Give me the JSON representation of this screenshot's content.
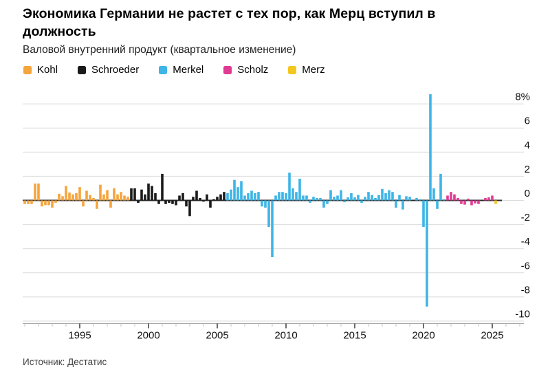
{
  "page": {
    "title": "Экономика Германии не растет с тех пор, как Мерц вступил в должность",
    "subtitle": "Валовой внутренний продукт (квартальное изменение)",
    "source": "Источник: Дестатис"
  },
  "chart_data": {
    "type": "bar",
    "title": "Экономика Германии не растет с тех пор, как Мерц вступил в должность",
    "subtitle": "Валовой внутренний продукт (квартальное изменение)",
    "source": "Источник: Дестатис",
    "unit": "%",
    "frequency": "quarterly",
    "x_start": "1991Q1",
    "x_end": "2025Q2",
    "ylim": [
      -10,
      8.8
    ],
    "yticks": [
      8,
      6,
      4,
      2,
      0,
      -2,
      -4,
      -6,
      -8,
      -10
    ],
    "ytick_labels": [
      "8%",
      "6",
      "4",
      "2",
      "0",
      "-2",
      "-4",
      "-6",
      "-8",
      "-10"
    ],
    "xtick_years": [
      1995,
      2000,
      2005,
      2010,
      2015,
      2020,
      2025
    ],
    "axis_year_range": [
      1991,
      2027
    ],
    "grid": true,
    "legend_position": "top",
    "colors": {
      "grid": "#dbdbdb",
      "zero_line": "#2b2b2b",
      "axis_line": "#a9a9a9",
      "major_tick": "#3c3c3c",
      "minor_tick": "#c0c0c0"
    },
    "series": [
      {
        "name": "Kohl",
        "color": "#F6A43C",
        "start": "1991Q1",
        "values": [
          -0.3,
          -0.3,
          -0.3,
          1.4,
          1.4,
          -0.5,
          -0.4,
          -0.4,
          -0.6,
          -0.2,
          0.55,
          0.35,
          1.2,
          0.65,
          0.5,
          0.6,
          1.1,
          -0.5,
          0.8,
          0.45,
          0.2,
          -0.7,
          1.3,
          0.5,
          0.85,
          -0.6,
          1.0,
          0.5,
          0.7,
          0.4,
          0.3
        ]
      },
      {
        "name": "Schroeder",
        "color": "#1A1A1A",
        "start": "1998Q4",
        "values": [
          1.0,
          1.0,
          -0.2,
          0.9,
          0.5,
          1.4,
          1.2,
          0.6,
          -0.3,
          2.2,
          -0.3,
          -0.2,
          -0.3,
          -0.4,
          0.4,
          0.6,
          -0.5,
          -1.3,
          0.3,
          0.8,
          0.2,
          -0.1,
          0.5,
          -0.6,
          0.1,
          0.3,
          0.5,
          0.7
        ]
      },
      {
        "name": "Merkel",
        "color": "#3DB5E6",
        "start": "2005Q4",
        "values": [
          0.6,
          0.9,
          1.7,
          1.1,
          1.6,
          0.4,
          0.6,
          0.8,
          0.6,
          0.7,
          -0.5,
          -0.6,
          -2.2,
          -4.7,
          0.4,
          0.7,
          0.7,
          0.6,
          2.3,
          1.0,
          0.7,
          1.8,
          0.4,
          0.4,
          -0.2,
          0.3,
          0.2,
          0.2,
          -0.6,
          -0.3,
          0.85,
          0.3,
          0.4,
          0.85,
          -0.15,
          0.25,
          0.6,
          0.25,
          0.45,
          -0.2,
          0.3,
          0.7,
          0.45,
          0.2,
          0.45,
          0.95,
          0.6,
          0.85,
          0.7,
          -0.6,
          0.45,
          -0.75,
          0.35,
          0.3,
          0.0,
          0.2,
          0.1,
          -2.2,
          -8.8,
          8.8,
          1.0,
          -0.7,
          2.2,
          0.1
        ]
      },
      {
        "name": "Scholz",
        "color": "#E13A92",
        "start": "2021Q4",
        "values": [
          0.4,
          0.7,
          0.5,
          0.2,
          -0.3,
          -0.35,
          0.15,
          -0.4,
          -0.25,
          -0.3,
          0.0,
          0.2,
          0.25,
          0.4
        ]
      },
      {
        "name": "Merz",
        "color": "#F4C71E",
        "start": "2025Q2",
        "values": [
          -0.3
        ]
      }
    ]
  }
}
